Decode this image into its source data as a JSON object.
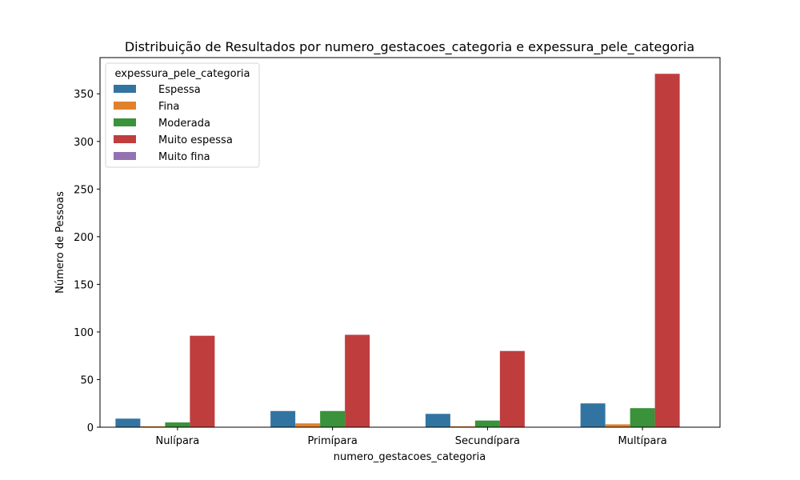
{
  "chart_data": {
    "type": "bar",
    "title": "Distribuição de Resultados por numero_gestacoes_categoria e expessura_pele_categoria",
    "xlabel": "numero_gestacoes_categoria",
    "ylabel": "Número de Pessoas",
    "categories": [
      "Nulípara",
      "Primípara",
      "Secundípara",
      "Multípara"
    ],
    "ylim": [
      0,
      388
    ],
    "yticks": [
      0,
      50,
      100,
      150,
      200,
      250,
      300,
      350
    ],
    "grid": false,
    "legend": {
      "title": "expessura_pele_categoria",
      "placement": "upper left"
    },
    "series": [
      {
        "name": "Espessa",
        "color": "#3274a1",
        "values": [
          9,
          17,
          14,
          25
        ]
      },
      {
        "name": "Fina",
        "color": "#e1812c",
        "values": [
          1,
          4,
          1,
          3
        ]
      },
      {
        "name": "Moderada",
        "color": "#3a923a",
        "values": [
          5,
          17,
          7,
          20
        ]
      },
      {
        "name": "Muito espessa",
        "color": "#c03d3e",
        "values": [
          96,
          97,
          80,
          371
        ]
      },
      {
        "name": "Muito fina",
        "color": "#9372b2",
        "values": [
          0,
          0,
          0,
          0
        ]
      }
    ]
  }
}
